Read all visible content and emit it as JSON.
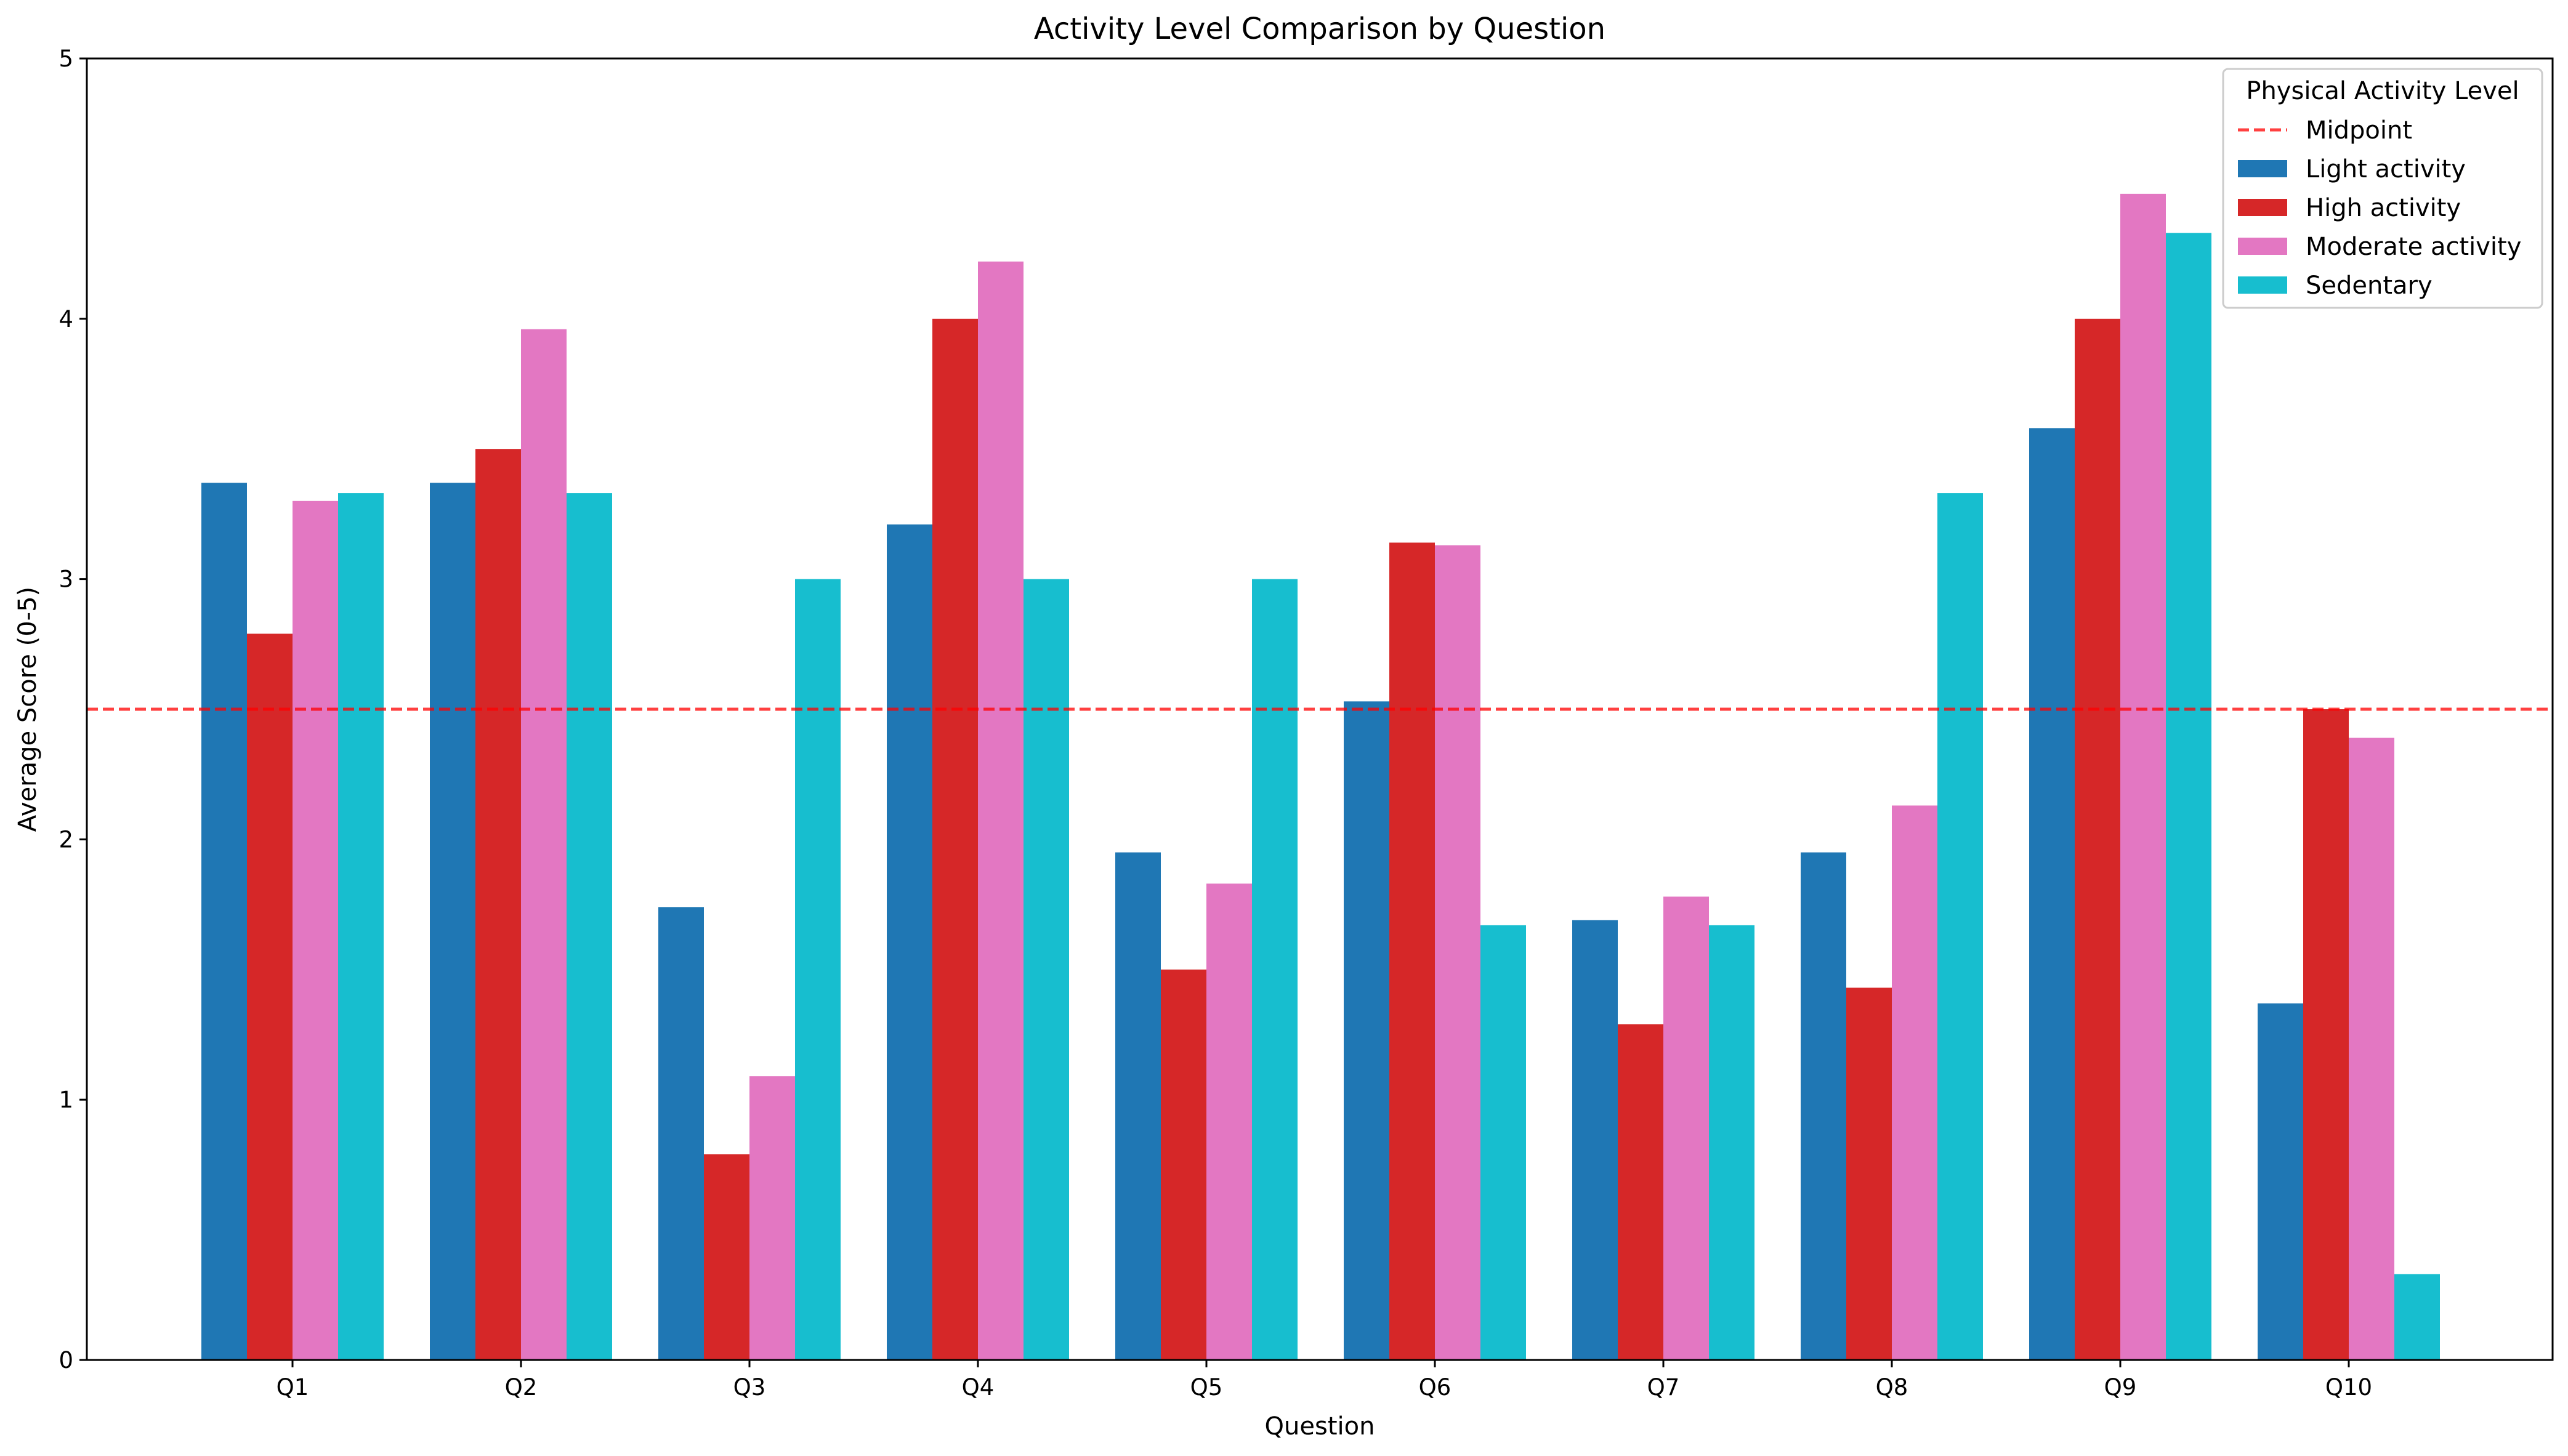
{
  "chart_data": {
    "type": "bar",
    "title": "Activity Level Comparison by Question",
    "xlabel": "Question",
    "ylabel": "Average Score (0-5)",
    "ylim": [
      0,
      5
    ],
    "yticks": [
      0,
      1,
      2,
      3,
      4,
      5
    ],
    "categories": [
      "Q1",
      "Q2",
      "Q3",
      "Q4",
      "Q5",
      "Q6",
      "Q7",
      "Q8",
      "Q9",
      "Q10"
    ],
    "series": [
      {
        "name": "Light activity",
        "color": "#1f77b4",
        "values": [
          3.37,
          3.37,
          1.74,
          3.21,
          1.95,
          2.53,
          1.69,
          1.95,
          3.58,
          1.37
        ]
      },
      {
        "name": "High activity",
        "color": "#d62728",
        "values": [
          2.79,
          3.5,
          0.79,
          4.0,
          1.5,
          3.14,
          1.29,
          1.43,
          4.0,
          2.5
        ]
      },
      {
        "name": "Moderate activity",
        "color": "#e377c2",
        "values": [
          3.3,
          3.96,
          1.09,
          4.22,
          1.83,
          3.13,
          1.78,
          2.13,
          4.48,
          2.39
        ]
      },
      {
        "name": "Sedentary",
        "color": "#17becf",
        "values": [
          3.33,
          3.33,
          3.0,
          3.0,
          3.0,
          1.67,
          1.67,
          3.33,
          4.33,
          0.33
        ]
      }
    ],
    "reference_line": {
      "name": "Midpoint",
      "value": 2.5,
      "color": "#ff0000",
      "style": "dashed"
    },
    "legend": {
      "title": "Physical Activity Level",
      "placement": "top-right"
    },
    "grid": false
  }
}
